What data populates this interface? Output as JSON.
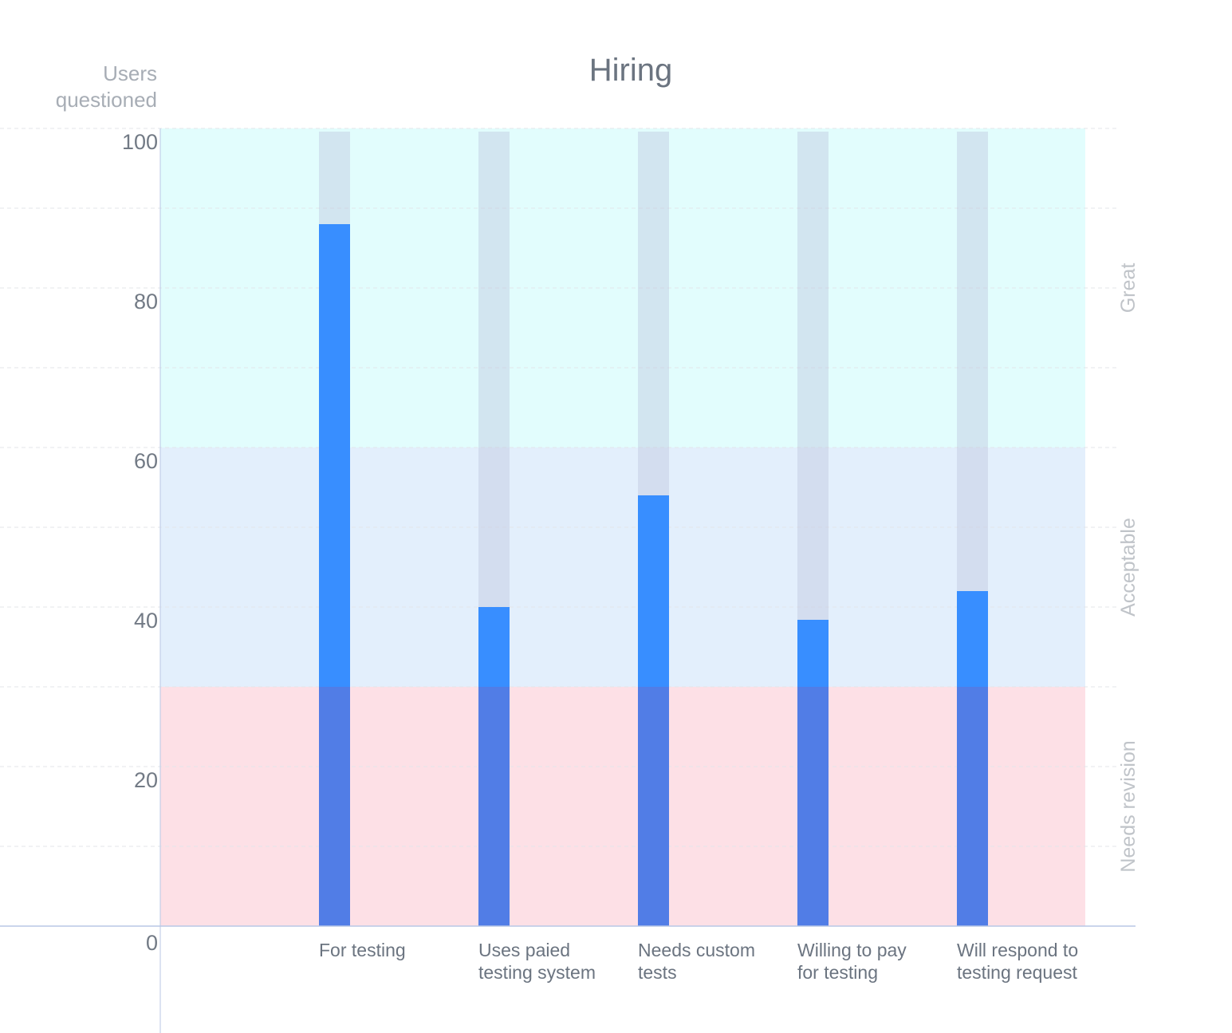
{
  "chart_data": {
    "type": "bar",
    "title": "Hiring",
    "ylabel": "Users questioned",
    "xlabel": "",
    "ylim": [
      0,
      100
    ],
    "yticks": [
      0,
      20,
      40,
      60,
      80,
      100
    ],
    "grid": true,
    "categories": [
      [
        "For testing"
      ],
      [
        "Uses paied",
        "testing system"
      ],
      [
        "Needs custom",
        "tests"
      ],
      [
        "Willing to pay",
        "for testing"
      ],
      [
        "Will respond to",
        "testing request"
      ]
    ],
    "values": [
      88,
      40,
      54,
      38.4,
      42
    ],
    "max_value": 100,
    "zones": [
      {
        "label": "Needs revision",
        "from": 0,
        "to": 30,
        "color": "#fde0e6"
      },
      {
        "label": "Acceptable",
        "from": 30,
        "to": 60,
        "color": "#e3effc"
      },
      {
        "label": "Great",
        "from": 60,
        "to": 100,
        "color": "#e2fdfd"
      }
    ],
    "colors": {
      "bar": "#388eff",
      "bar_in_low_zone": "#517de6",
      "bar_track": "rgba(190, 200, 225, 0.45)",
      "axis": "#b8c7e6",
      "grid": "#e3e6ea"
    }
  }
}
